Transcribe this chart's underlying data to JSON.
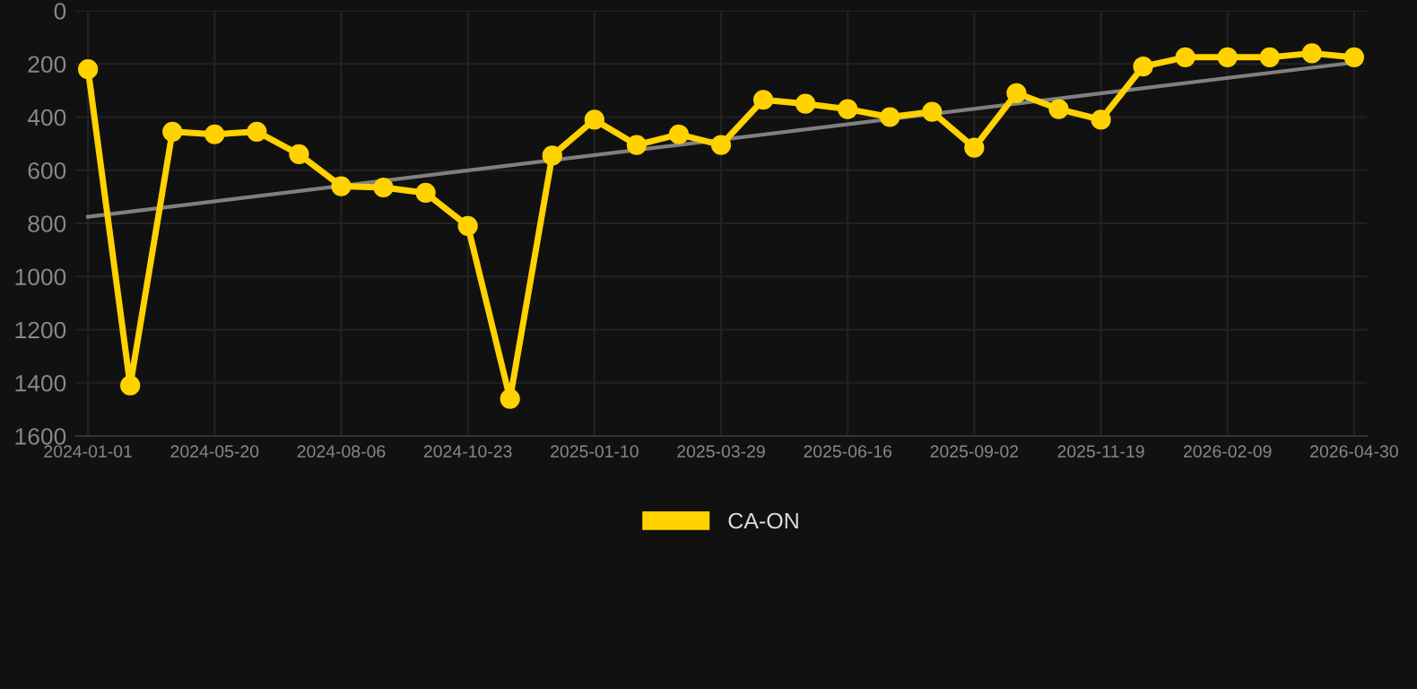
{
  "chart_data": {
    "type": "line",
    "categories": [
      "2024-01-01",
      null,
      null,
      "2024-05-20",
      null,
      null,
      "2024-08-06",
      null,
      null,
      "2024-10-23",
      null,
      null,
      "2025-01-10",
      null,
      null,
      "2025-03-29",
      null,
      null,
      "2025-06-16",
      null,
      null,
      "2025-09-02",
      null,
      null,
      "2025-11-19",
      null,
      null,
      "2026-02-09",
      null,
      null,
      "2026-04-30"
    ],
    "series": [
      {
        "name": "CA-ON",
        "color": "#ffd200",
        "marker": "circle",
        "values": [
          220,
          1410,
          455,
          465,
          455,
          540,
          660,
          665,
          685,
          810,
          1460,
          545,
          410,
          505,
          465,
          505,
          335,
          350,
          370,
          400,
          380,
          515,
          310,
          370,
          410,
          210,
          175,
          175,
          175,
          160,
          175
        ]
      },
      {
        "type": "line",
        "color": "#808080",
        "marker": "none",
        "values": [
          775,
          null,
          null,
          null,
          null,
          null,
          null,
          null,
          null,
          null,
          null,
          null,
          null,
          null,
          null,
          null,
          null,
          null,
          null,
          null,
          null,
          null,
          null,
          null,
          null,
          null,
          null,
          null,
          null,
          null,
          195
        ]
      }
    ],
    "ylim": [
      1600,
      0
    ],
    "yticks": [
      0,
      200,
      400,
      600,
      800,
      1000,
      1200,
      1400,
      1600
    ],
    "grid": true,
    "legend": "bottom",
    "line_style": "solid"
  }
}
